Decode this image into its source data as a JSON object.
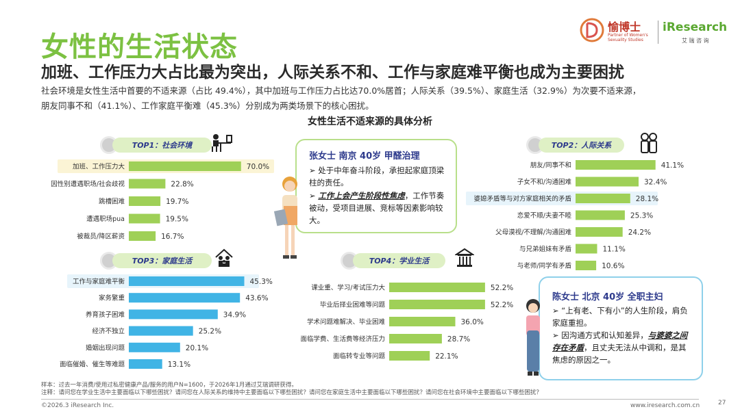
{
  "header": {
    "title": "女性的生活状态",
    "subtitle": "加班、工作压力大占比最为突出，人际关系不和、工作与家庭难平衡也成为主要困扰",
    "desc_line1": "社会环境是女性生活中首要的不适来源（占比 49.4%），其中加班与工作压力占比达70.0%居首；人际关系（39.5%）、家庭生活（32.9%）为次要不适来源，",
    "desc_line2": "朋友同事不和（41.1%）、工作家庭平衡难（45.3%）分别成为两类场景下的核心困扰。"
  },
  "logos": {
    "brand1": "愉博士",
    "brand1_sub1": "Partner of Women's",
    "brand1_sub2": "Sexuality Studies",
    "brand2": "iResearch",
    "brand2_sub": "艾  瑞  咨  询"
  },
  "chart_title": "女性生活不适来源的具体分析",
  "cards": {
    "left_title": "张女士 南京 40岁 甲醛治理",
    "left_b1": "处于中年奋斗阶段，承担起家庭顶梁柱的责任。",
    "left_b2_em": "工作上会产生阶段性焦虑",
    "left_b2_rest": "，工作节奏被动，受项目进展、竞标等因素影响较大。",
    "right_title": "陈女士 北京 40岁 全职主妇",
    "right_b1": "“上有老、下有小”的人生阶段，肩负家庭重担。",
    "right_b2_pre": "因沟通方式和认知差异，",
    "right_b2_em": "与婆婆之间存在矛盾",
    "right_b2_rest": "，且丈夫无法从中调和，是其焦虑的原因之一。"
  },
  "colors": {
    "green_bar": "#9fd057",
    "blue_bar": "#40b4e5",
    "title_green": "#7cc142",
    "pill_text": "#2d3a8c"
  },
  "chart_data": [
    {
      "type": "bar",
      "title": "TOP1：社会环境",
      "unit": "%",
      "categories": [
        "加班、工作压力大",
        "因性别遭遇职场/社会歧视",
        "跳槽困难",
        "遭遇职场pua",
        "被裁员/降区薪资"
      ],
      "values": [
        70.0,
        22.8,
        19.7,
        19.5,
        16.7
      ],
      "highlight": 0
    },
    {
      "type": "bar",
      "title": "TOP2：人际关系",
      "unit": "%",
      "categories": [
        "朋友/同事不和",
        "子女不和/沟通困难",
        "婆媳矛盾等与对方家庭相关的矛盾",
        "恋爱不顺/夫妻不睦",
        "父母漠视/不理解/沟通困难",
        "与兄弟姐妹有矛盾",
        "与老师/同学有矛盾"
      ],
      "values": [
        41.1,
        32.4,
        28.1,
        25.3,
        24.2,
        11.1,
        10.6
      ],
      "highlight": 2
    },
    {
      "type": "bar",
      "title": "TOP3：家庭生活",
      "unit": "%",
      "categories": [
        "工作与家庭难平衡",
        "家务繁重",
        "养育孩子困难",
        "经济不独立",
        "婚姻出现问题",
        "面临催婚、催生等难题"
      ],
      "values": [
        45.3,
        43.6,
        34.9,
        25.2,
        20.1,
        13.1
      ],
      "highlight": 0
    },
    {
      "type": "bar",
      "title": "TOP4：学业生活",
      "unit": "%",
      "categories": [
        "课业重、学习/考试压力大",
        "毕业后择业困难等问题",
        "学术问题难解决、毕业困难",
        "面临学费、生活费等经济压力",
        "面临转专业等问题"
      ],
      "values": [
        52.2,
        52.2,
        36.0,
        28.7,
        22.1
      ],
      "highlight": -1
    }
  ],
  "footer": {
    "note1": "样本：过去一年消费/使用过私密健康产品/服务的用户N=1600，于2026年1月通过艾瑞调研获得。",
    "note2": "注释：请问您在学业生活中主要面临以下哪些困扰？请问您在人际关系的维持中主要面临以下哪些困扰？请问您在家庭生活中主要面临以下哪些困扰？请问您在社会环境中主要面临以下哪些困扰？",
    "copyright": "©2026.3 iResearch Inc.",
    "url": "www.iresearch.com.cn",
    "page": "27"
  }
}
